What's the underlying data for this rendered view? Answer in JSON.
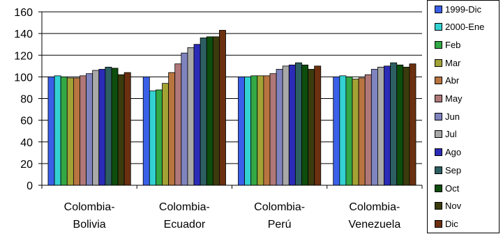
{
  "chart_data": {
    "type": "bar",
    "categories": [
      [
        "Colombia-",
        "Bolivia"
      ],
      [
        "Colombia-",
        "Ecuador"
      ],
      [
        "Colombia-",
        "Perú"
      ],
      [
        "Colombia-",
        "Venezuela"
      ]
    ],
    "ylim": [
      0,
      160
    ],
    "yticks": [
      0,
      20,
      40,
      60,
      80,
      100,
      120,
      140,
      160
    ],
    "grid": true,
    "legend_position": "right",
    "series": [
      {
        "name": "1999-Dic",
        "color": "#3a5fe8",
        "values": [
          100,
          100,
          100,
          100
        ]
      },
      {
        "name": "2000-Ene",
        "color": "#33d1d1",
        "values": [
          101,
          87,
          100,
          101
        ]
      },
      {
        "name": "Feb",
        "color": "#33a845",
        "values": [
          100,
          88,
          101,
          100
        ]
      },
      {
        "name": "Mar",
        "color": "#a3a335",
        "values": [
          99,
          94,
          101,
          98
        ]
      },
      {
        "name": "Abr",
        "color": "#b87540",
        "values": [
          99,
          104,
          101,
          99
        ]
      },
      {
        "name": "May",
        "color": "#b07878",
        "values": [
          101,
          112,
          103,
          102
        ]
      },
      {
        "name": "Jun",
        "color": "#7f84bf",
        "values": [
          103,
          122,
          107,
          107
        ]
      },
      {
        "name": "Jul",
        "color": "#a8a8a8",
        "values": [
          106,
          127,
          110,
          109
        ]
      },
      {
        "name": "Ago",
        "color": "#2b2bb8",
        "values": [
          107,
          130,
          111,
          110
        ]
      },
      {
        "name": "Sep",
        "color": "#2d5f62",
        "values": [
          109,
          136,
          113,
          113
        ]
      },
      {
        "name": "Oct",
        "color": "#0d4d0d",
        "values": [
          108,
          137,
          111,
          111
        ]
      },
      {
        "name": "Nov",
        "color": "#3b3b0d",
        "values": [
          102,
          137,
          107,
          109
        ]
      },
      {
        "name": "Dic",
        "color": "#6b3010",
        "values": [
          104,
          143,
          110,
          112
        ]
      }
    ]
  }
}
